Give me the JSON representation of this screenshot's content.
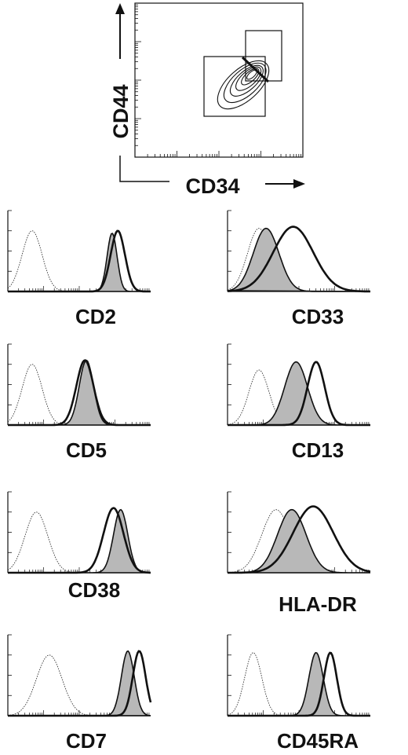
{
  "chart_data": [
    {
      "type": "contour",
      "xlabel": "CD34",
      "ylabel": "CD44",
      "log_axes": true,
      "gates": 2
    },
    {
      "type": "histogram-overlay",
      "label": "CD2",
      "series": [
        {
          "style": "control-dotted",
          "peak": 0.17,
          "spread": 0.07,
          "height": 0.75
        },
        {
          "style": "filled-gray",
          "peak": 0.73,
          "spread": 0.035,
          "height": 0.72
        },
        {
          "style": "thick-outline",
          "peak": 0.77,
          "spread": 0.05,
          "height": 0.75
        }
      ]
    },
    {
      "type": "histogram-overlay",
      "label": "CD33",
      "series": [
        {
          "style": "control-dotted",
          "peak": 0.22,
          "spread": 0.08,
          "height": 0.78
        },
        {
          "style": "filled-gray",
          "peak": 0.27,
          "spread": 0.09,
          "height": 0.78
        },
        {
          "style": "thick-outline",
          "peak": 0.46,
          "spread": 0.14,
          "height": 0.8
        }
      ]
    },
    {
      "type": "histogram-overlay",
      "label": "CD5",
      "series": [
        {
          "style": "control-dotted",
          "peak": 0.17,
          "spread": 0.07,
          "height": 0.75
        },
        {
          "style": "filled-gray",
          "peak": 0.55,
          "spread": 0.05,
          "height": 0.8
        },
        {
          "style": "thick-outline",
          "peak": 0.54,
          "spread": 0.06,
          "height": 0.8
        }
      ]
    },
    {
      "type": "histogram-overlay",
      "label": "CD13",
      "series": [
        {
          "style": "control-dotted",
          "peak": 0.22,
          "spread": 0.07,
          "height": 0.68
        },
        {
          "style": "filled-gray",
          "peak": 0.48,
          "spread": 0.08,
          "height": 0.78
        },
        {
          "style": "thick-outline",
          "peak": 0.62,
          "spread": 0.06,
          "height": 0.78
        }
      ]
    },
    {
      "type": "histogram-overlay",
      "label": "CD38",
      "series": [
        {
          "style": "control-dotted",
          "peak": 0.2,
          "spread": 0.08,
          "height": 0.75
        },
        {
          "style": "filled-gray",
          "peak": 0.79,
          "spread": 0.05,
          "height": 0.78
        },
        {
          "style": "thick-outline",
          "peak": 0.74,
          "spread": 0.07,
          "height": 0.8
        }
      ]
    },
    {
      "type": "histogram-overlay",
      "label": "HLA-DR",
      "series": [
        {
          "style": "control-dotted",
          "peak": 0.34,
          "spread": 0.1,
          "height": 0.78
        },
        {
          "style": "filled-gray",
          "peak": 0.45,
          "spread": 0.1,
          "height": 0.78
        },
        {
          "style": "thick-outline",
          "peak": 0.6,
          "spread": 0.14,
          "height": 0.82
        }
      ]
    },
    {
      "type": "histogram-overlay",
      "label": "CD7",
      "series": [
        {
          "style": "control-dotted",
          "peak": 0.29,
          "spread": 0.09,
          "height": 0.75
        },
        {
          "style": "filled-gray",
          "peak": 0.84,
          "spread": 0.045,
          "height": 0.8
        },
        {
          "style": "thick-outline",
          "peak": 0.92,
          "spread": 0.045,
          "height": 0.8
        }
      ]
    },
    {
      "type": "histogram-overlay",
      "label": "CD45RA",
      "series": [
        {
          "style": "control-dotted",
          "peak": 0.18,
          "spread": 0.06,
          "height": 0.78
        },
        {
          "style": "filled-gray",
          "peak": 0.62,
          "spread": 0.05,
          "height": 0.78
        },
        {
          "style": "thick-outline",
          "peak": 0.72,
          "spread": 0.045,
          "height": 0.78
        }
      ]
    }
  ]
}
